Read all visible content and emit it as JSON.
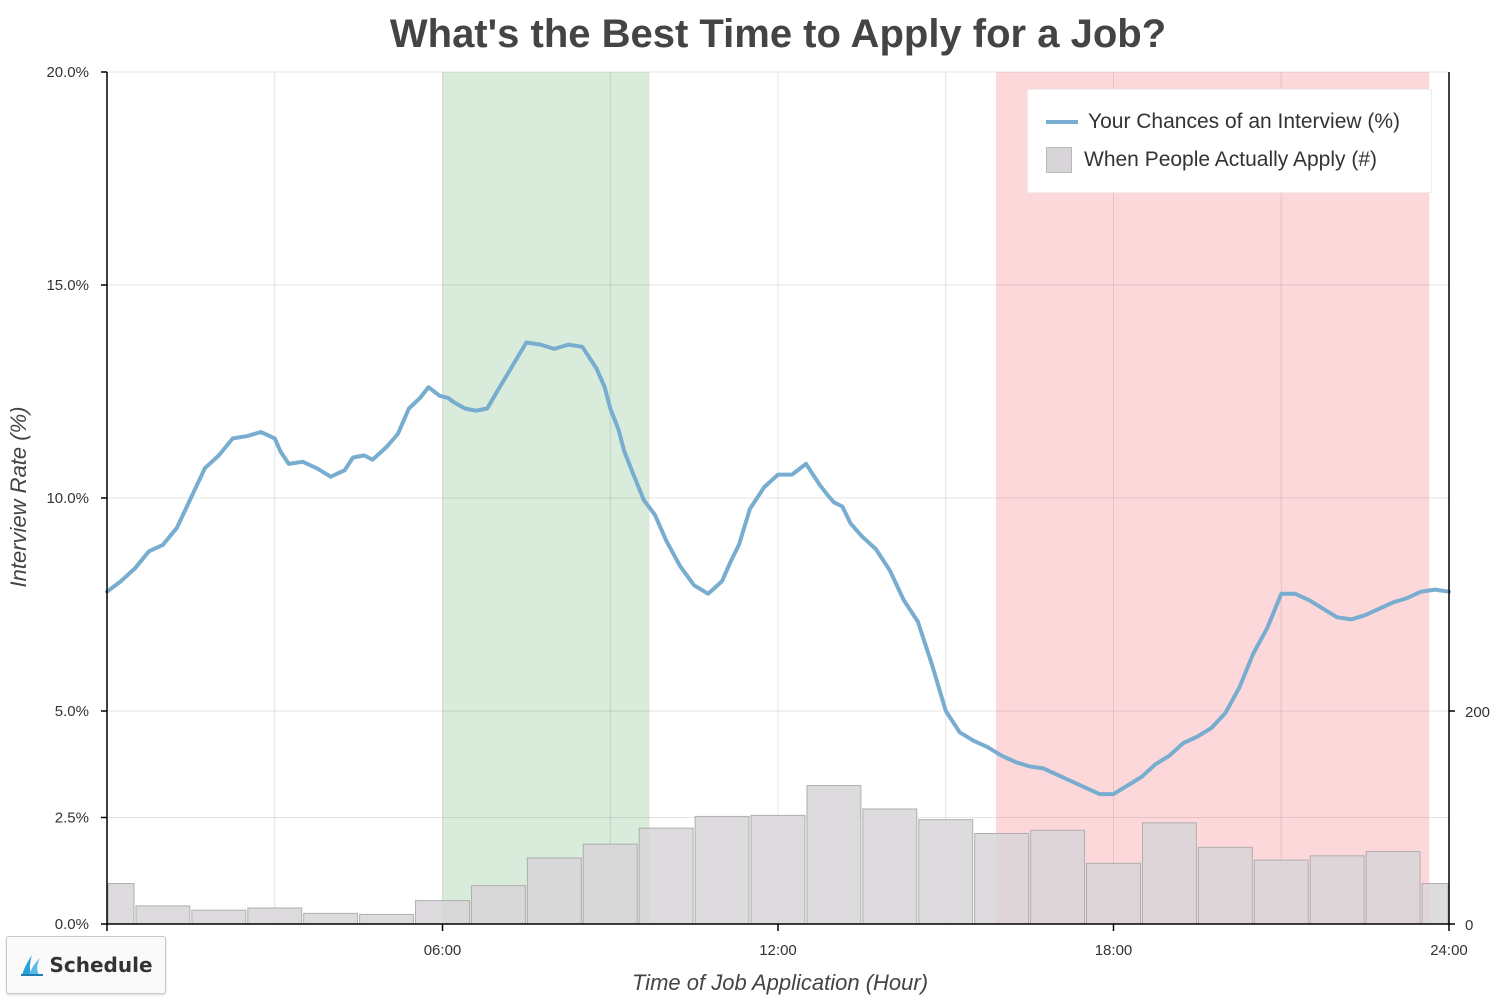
{
  "chart_data": {
    "type": "line",
    "title": "What's the Best Time to Apply for a Job?",
    "xlabel": "Time of Job Application (Hour)",
    "ylabel": "Interview Rate (%)",
    "x_ticks": [
      0,
      6,
      12,
      18,
      24
    ],
    "x_tick_labels": [
      "06:00",
      "12:00",
      "18:00",
      "24:00"
    ],
    "y_ticks": [
      0,
      2.5,
      5,
      10,
      15,
      20
    ],
    "y_tick_labels": [
      "0.0%",
      "2.5%",
      "5.0%",
      "10.0%",
      "15.0%",
      "20.0%"
    ],
    "y2_ticks": [
      0,
      200
    ],
    "y2_tick_labels": [
      "0",
      "200"
    ],
    "xlim": [
      0,
      24
    ],
    "ylim": [
      0,
      20
    ],
    "y2lim": [
      0,
      200
    ],
    "grid": true,
    "legend_position": "top-right",
    "highlight_bands": [
      {
        "x": [
          6,
          9.7
        ],
        "color": "#d2e7d3"
      },
      {
        "x": [
          15.9,
          23.65
        ],
        "color": "#fdd1d5"
      }
    ],
    "series": [
      {
        "name": "Your Chances of an Interview (%)",
        "type": "line",
        "color": "#78add0",
        "x": [
          0,
          0.25,
          0.5,
          0.75,
          1,
          1.25,
          1.5,
          1.75,
          2,
          2.25,
          2.5,
          2.75,
          3,
          3.1,
          3.25,
          3.5,
          3.75,
          4,
          4.25,
          4.4,
          4.6,
          4.75,
          5,
          5.2,
          5.4,
          5.6,
          5.75,
          5.95,
          6.1,
          6.2,
          6.4,
          6.6,
          6.8,
          7,
          7.25,
          7.5,
          7.75,
          8,
          8.25,
          8.5,
          8.75,
          8.9,
          9,
          9.15,
          9.25,
          9.4,
          9.6,
          9.8,
          10,
          10.25,
          10.5,
          10.75,
          11,
          11.15,
          11.3,
          11.5,
          11.75,
          12,
          12.25,
          12.5,
          12.75,
          12.9,
          13,
          13.15,
          13.3,
          13.5,
          13.75,
          14,
          14.25,
          14.5,
          14.75,
          15,
          15.25,
          15.5,
          15.75,
          16,
          16.25,
          16.5,
          16.75,
          17,
          17.25,
          17.5,
          17.75,
          18,
          18.25,
          18.5,
          18.75,
          19,
          19.25,
          19.5,
          19.75,
          20,
          20.25,
          20.5,
          20.75,
          21,
          21.25,
          21.5,
          21.75,
          22,
          22.25,
          22.5,
          22.75,
          23,
          23.25,
          23.5,
          23.75,
          24
        ],
        "values": [
          7.8,
          8.05,
          8.35,
          8.75,
          8.9,
          9.3,
          10.0,
          10.7,
          11.0,
          11.4,
          11.45,
          11.55,
          11.4,
          11.1,
          10.8,
          10.85,
          10.7,
          10.5,
          10.65,
          10.95,
          11.0,
          10.9,
          11.2,
          11.5,
          12.1,
          12.35,
          12.6,
          12.4,
          12.35,
          12.25,
          12.1,
          12.05,
          12.1,
          12.55,
          13.1,
          13.65,
          13.6,
          13.5,
          13.6,
          13.55,
          13.05,
          12.6,
          12.1,
          11.6,
          11.1,
          10.6,
          9.95,
          9.6,
          9.0,
          8.4,
          7.95,
          7.75,
          8.05,
          8.5,
          8.9,
          9.75,
          10.25,
          10.55,
          10.55,
          10.8,
          10.3,
          10.05,
          9.9,
          9.8,
          9.4,
          9.1,
          8.8,
          8.3,
          7.6,
          7.1,
          6.1,
          5.0,
          4.5,
          4.3,
          4.15,
          3.95,
          3.8,
          3.7,
          3.65,
          3.5,
          3.35,
          3.2,
          3.05,
          3.05,
          3.25,
          3.45,
          3.75,
          3.95,
          4.25,
          4.4,
          4.6,
          4.95,
          5.55,
          6.35,
          6.95,
          7.75,
          7.75,
          7.6,
          7.4,
          7.2,
          7.15,
          7.25,
          7.4,
          7.55,
          7.65,
          7.8,
          7.85,
          7.8
        ]
      },
      {
        "name": "When People Actually Apply (#)",
        "type": "bar",
        "axis": "y2",
        "color": "#d7d5d7",
        "bins": [
          [
            0,
            0.5
          ],
          [
            0.5,
            1.5
          ],
          [
            1.5,
            2.5
          ],
          [
            2.5,
            3.5
          ],
          [
            3.5,
            4.5
          ],
          [
            4.5,
            5.5
          ],
          [
            5.5,
            6.5
          ],
          [
            6.5,
            7.5
          ],
          [
            7.5,
            8.5
          ],
          [
            8.5,
            9.5
          ],
          [
            9.5,
            10.5
          ],
          [
            10.5,
            11.5
          ],
          [
            11.5,
            12.5
          ],
          [
            12.5,
            13.5
          ],
          [
            13.5,
            14.5
          ],
          [
            14.5,
            15.5
          ],
          [
            15.5,
            16.5
          ],
          [
            16.5,
            17.5
          ],
          [
            17.5,
            18.5
          ],
          [
            18.5,
            19.5
          ],
          [
            19.5,
            20.5
          ],
          [
            20.5,
            21.5
          ],
          [
            21.5,
            22.5
          ],
          [
            22.5,
            23.5
          ],
          [
            23.5,
            24
          ]
        ],
        "values": [
          38,
          17,
          13,
          15,
          10,
          9,
          22,
          36,
          62,
          75,
          90,
          101,
          102,
          130,
          108,
          98,
          85,
          88,
          57,
          95,
          72,
          60,
          64,
          68,
          38
        ]
      }
    ]
  },
  "legend": {
    "line_label": "Your Chances of an Interview (%)",
    "bar_label": "When People Actually Apply (#)"
  },
  "badge": {
    "label": "Schedule",
    "icon": "schedule-logo-icon"
  }
}
